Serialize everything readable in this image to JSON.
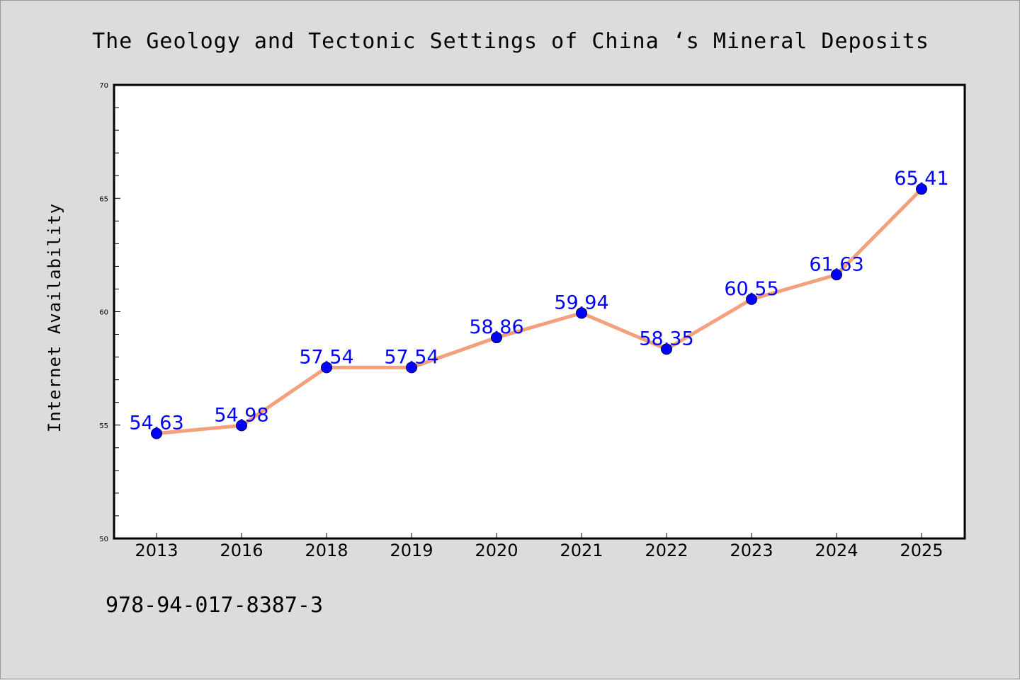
{
  "chart_data": {
    "type": "line",
    "title": "The Geology and Tectonic Settings of China ‘s Mineral Deposits",
    "xlabel": "",
    "ylabel": "Internet Availability",
    "categories": [
      "2013",
      "2016",
      "2018",
      "2019",
      "2020",
      "2021",
      "2022",
      "2023",
      "2024",
      "2025"
    ],
    "series": [
      {
        "values": [
          54.63,
          54.98,
          57.54,
          57.54,
          58.86,
          59.94,
          58.35,
          60.55,
          61.63,
          65.41
        ],
        "line_color": "#f4a07c",
        "marker_color": "#0000ff"
      }
    ],
    "ylim": [
      50,
      70
    ],
    "y_major_ticks": [
      50,
      55,
      60,
      65,
      70
    ],
    "y_minor_step": 1,
    "grid": false,
    "data_labels": true,
    "data_label_color": "#0000ff"
  },
  "footer": {
    "isbn": "978-94-017-8387-3"
  },
  "colors": {
    "background": "#dcdcdc",
    "plot_background": "#ffffff",
    "axis": "#000000"
  }
}
